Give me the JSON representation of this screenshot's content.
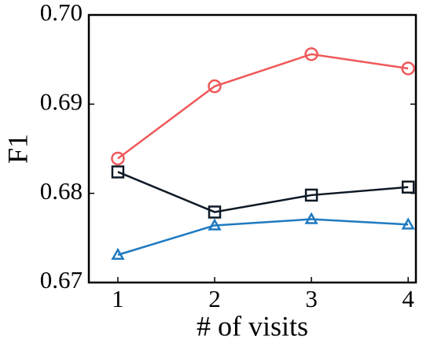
{
  "chart_data": {
    "type": "line",
    "x_label": "# of visits",
    "y_label": "F1",
    "x": [
      1,
      2,
      3,
      4
    ],
    "series": [
      {
        "color": "#f0585a",
        "marker": "circle",
        "values": [
          0.6839,
          0.692,
          0.6956,
          0.694
        ]
      },
      {
        "color": "#0d1a26",
        "marker": "square",
        "values": [
          0.6824,
          0.6779,
          0.6798,
          0.6807
        ]
      },
      {
        "color": "#1f7ac0",
        "marker": "triangle",
        "values": [
          0.6731,
          0.6764,
          0.6771,
          0.6765
        ]
      }
    ],
    "xlim": [
      0.7,
      4.08
    ],
    "ylim": [
      0.67,
      0.7
    ],
    "xticks": [
      1,
      2,
      3,
      4
    ],
    "yticks": [
      {
        "value": 0.67,
        "label": "0.67"
      },
      {
        "value": 0.68,
        "label": "0.68"
      },
      {
        "value": 0.69,
        "label": "0.69"
      },
      {
        "value": 0.7,
        "label": "0.70"
      }
    ],
    "grid": false
  }
}
